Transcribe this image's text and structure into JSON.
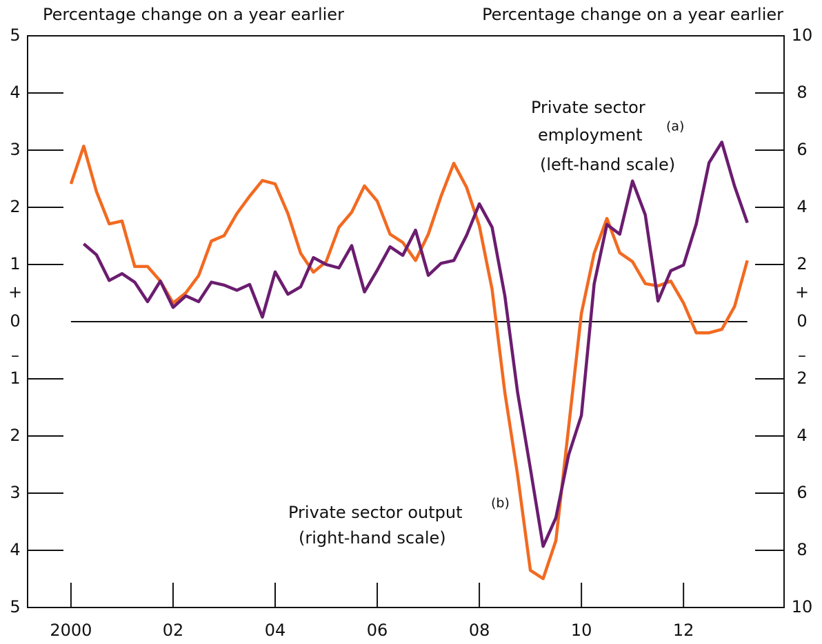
{
  "chart_data": {
    "type": "line",
    "y_label": "Percentage change on a year earlier",
    "y2_label": "Percentage change on a year earlier",
    "sign_labels": [
      "+",
      "–"
    ],
    "annotations": [
      "Private sector output",
      "(b)",
      "(right-hand scale)",
      "Private sector",
      "employment",
      "(a)",
      "(left-hand scale)"
    ],
    "x": [
      2000,
      2000.25,
      2000.5,
      2000.75,
      2001,
      2001.25,
      2001.5,
      2001.75,
      2002,
      2002.25,
      2002.5,
      2002.75,
      2003,
      2003.25,
      2003.5,
      2003.75,
      2004,
      2004.25,
      2004.5,
      2004.75,
      2005,
      2005.25,
      2005.5,
      2005.75,
      2006,
      2006.25,
      2006.5,
      2006.75,
      2007,
      2007.25,
      2007.5,
      2007.75,
      2008,
      2008.25,
      2008.5,
      2008.75,
      2009,
      2009.25,
      2009.5,
      2009.75,
      2010,
      2010.25,
      2010.5,
      2010.75,
      2011,
      2011.25,
      2011.5,
      2011.75,
      2012,
      2012.25,
      2012.5,
      2012.75,
      2013,
      2013.25
    ],
    "series": [
      {
        "color": "#f26a21",
        "axis": "y2",
        "values": [
          4.82,
          6.14,
          4.55,
          3.42,
          3.52,
          1.93,
          1.93,
          1.42,
          0.65,
          1.01,
          1.61,
          2.82,
          3.01,
          3.78,
          4.39,
          4.94,
          4.82,
          3.78,
          2.39,
          1.73,
          2.1,
          3.3,
          3.83,
          4.75,
          4.22,
          3.06,
          2.77,
          2.14,
          3.06,
          4.39,
          5.54,
          4.7,
          3.35,
          1.13,
          -2.48,
          -5.37,
          -8.7,
          -8.99,
          -7.66,
          -3.69,
          0.29,
          2.39,
          3.61,
          2.41,
          2.1,
          1.33,
          1.25,
          1.42,
          0.65,
          -0.39,
          -0.39,
          -0.27,
          0.53,
          2.14
        ]
      },
      {
        "color": "#6b1d6f",
        "axis": "y",
        "values": [
          null,
          1.36,
          1.17,
          0.72,
          0.84,
          0.69,
          0.35,
          0.71,
          0.25,
          0.45,
          0.35,
          0.69,
          0.64,
          0.55,
          0.65,
          0.08,
          0.87,
          0.48,
          0.61,
          1.12,
          1.0,
          0.94,
          1.33,
          0.52,
          0.9,
          1.31,
          1.16,
          1.6,
          0.81,
          1.02,
          1.07,
          1.51,
          2.06,
          1.65,
          0.45,
          -1.24,
          -2.57,
          -3.93,
          -3.43,
          -2.33,
          -1.64,
          0.66,
          1.7,
          1.53,
          2.46,
          1.87,
          0.36,
          0.89,
          0.99,
          1.71,
          2.78,
          3.14,
          2.37,
          1.73
        ]
      }
    ],
    "xlim": [
      1999.15,
      2013.97
    ],
    "xticks": [
      {
        "value": 2000,
        "label": "2000"
      },
      {
        "value": 2002,
        "label": "02"
      },
      {
        "value": 2004,
        "label": "04"
      },
      {
        "value": 2006,
        "label": "06"
      },
      {
        "value": 2008,
        "label": "08"
      },
      {
        "value": 2010,
        "label": "10"
      },
      {
        "value": 2012,
        "label": "12"
      }
    ],
    "ylim": [
      -5,
      5
    ],
    "yticks": [
      5,
      4,
      3,
      2,
      1,
      0,
      {
        "value": -1,
        "label": "1"
      },
      {
        "value": -2,
        "label": "2"
      },
      {
        "value": -3,
        "label": "3"
      },
      {
        "value": -4,
        "label": "4"
      },
      {
        "value": -5,
        "label": "5"
      }
    ],
    "y2lim": [
      -10,
      10
    ],
    "y2ticks": [
      10,
      8,
      6,
      4,
      2,
      0,
      {
        "value": -2,
        "label": "2"
      },
      {
        "value": -4,
        "label": "4"
      },
      {
        "value": -6,
        "label": "6"
      },
      {
        "value": -8,
        "label": "8"
      },
      {
        "value": -10,
        "label": "10"
      }
    ]
  }
}
